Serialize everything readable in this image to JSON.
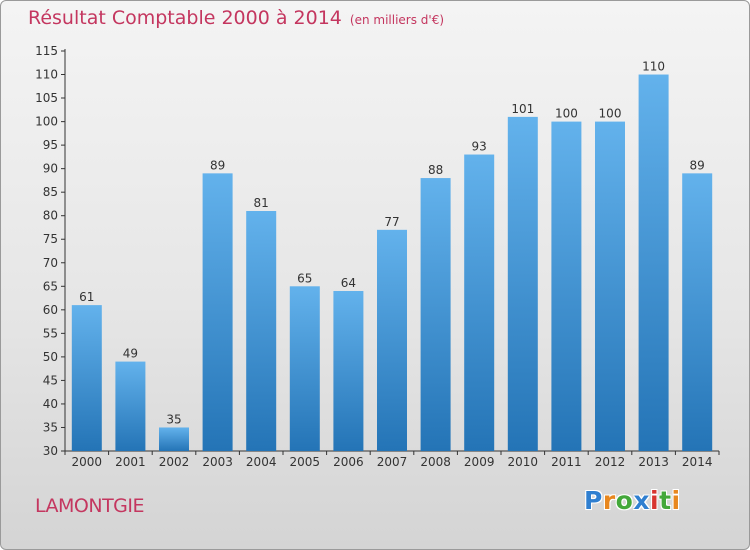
{
  "header": {
    "title": "Résultat Comptable 2000 à 2014",
    "unit": "(en milliers d'€)"
  },
  "footer": {
    "commune": "LAMONTGIE"
  },
  "logo": {
    "text": "Proxiti",
    "letters": [
      "P",
      "r",
      "o",
      "x",
      "i",
      "t",
      "i"
    ],
    "colors": [
      "#2f7fd0",
      "#e8871e",
      "#43a83a",
      "#2f7fd0",
      "#d8352f",
      "#43a83a",
      "#e8871e"
    ]
  },
  "colors": {
    "bar_top": "#63b2ec",
    "bar_bottom": "#2474b6",
    "title": "#c4365f",
    "axis": "#333333"
  },
  "chart_data": {
    "type": "bar",
    "title": "Résultat Comptable 2000 à 2014",
    "subtitle": "(en milliers d'€)",
    "categories": [
      "2000",
      "2001",
      "2002",
      "2003",
      "2004",
      "2005",
      "2006",
      "2007",
      "2008",
      "2009",
      "2010",
      "2011",
      "2012",
      "2013",
      "2014"
    ],
    "values": [
      61,
      49,
      35,
      89,
      81,
      65,
      64,
      77,
      88,
      93,
      101,
      100,
      100,
      110,
      89
    ],
    "xlabel": "",
    "ylabel": "",
    "ylim": [
      30,
      115
    ],
    "yticks": [
      30,
      35,
      40,
      45,
      50,
      55,
      60,
      65,
      70,
      75,
      80,
      85,
      90,
      95,
      100,
      105,
      110,
      115
    ],
    "grid": false,
    "legend": "none",
    "data_labels": true
  }
}
